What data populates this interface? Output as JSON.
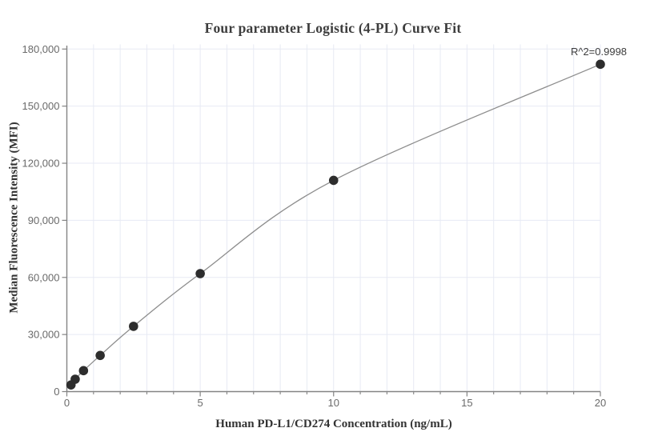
{
  "chart_data": {
    "type": "scatter",
    "title": "Four parameter Logistic (4-PL) Curve Fit",
    "xlabel": "Human PD-L1/CD274 Concentration (ng/mL)",
    "ylabel": "Median Fluorescence Intensity (MFI)",
    "annotation": "R^2=0.9998",
    "x": [
      0.156,
      0.313,
      0.625,
      1.25,
      2.5,
      5,
      10,
      20
    ],
    "y": [
      3500,
      6500,
      11000,
      19000,
      34300,
      62000,
      111000,
      172000
    ],
    "xlim": [
      0,
      20
    ],
    "ylim": [
      0,
      180000
    ],
    "x_major_ticks": [
      0,
      5,
      10,
      15,
      20
    ],
    "x_tick_labels": [
      "0",
      "5",
      "10",
      "15",
      "20"
    ],
    "x_minor_tick_step": 1,
    "y_major_ticks": [
      0,
      30000,
      60000,
      90000,
      120000,
      150000,
      180000
    ],
    "y_tick_labels": [
      "0",
      "30,000",
      "60,000",
      "90,000",
      "120,000",
      "150,000",
      "180,000"
    ],
    "grid": {
      "vertical_step": 1,
      "horizontal_step": 30000,
      "color": "#e7eaf4"
    },
    "colors": {
      "background": "#ffffff",
      "marker": "#2d2d2d",
      "line": "#8d8d8d",
      "axis": "#848484",
      "tick_label": "#6a6a6a",
      "title": "#3d3d3d",
      "annotation": "#3d3d3d"
    },
    "legend": null,
    "marker_radius": 5.8
  }
}
